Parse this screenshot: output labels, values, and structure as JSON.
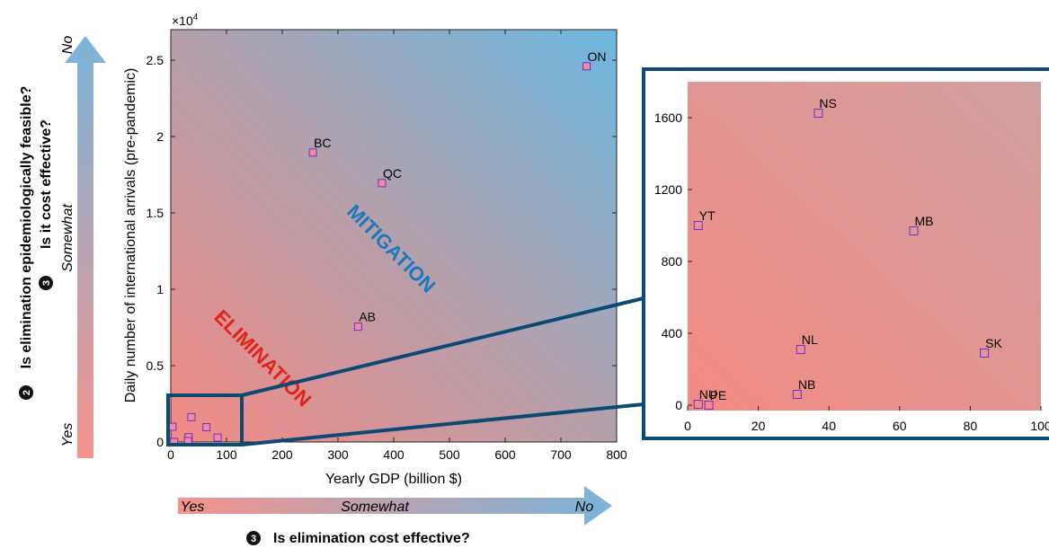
{
  "chart_data": [
    {
      "type": "scatter",
      "xlabel": "Yearly GDP (billion $)",
      "ylabel": "Daily number of international arrivals (pre-pandemic)",
      "exponent_label": "×10",
      "exponent_power": "4",
      "xlim": [
        0,
        800
      ],
      "ylim": [
        0,
        27000
      ],
      "x_ticks": [
        0,
        100,
        200,
        300,
        400,
        500,
        600,
        700,
        800
      ],
      "y_ticks": [
        0,
        5000,
        10000,
        15000,
        20000,
        25000
      ],
      "y_tick_labels": [
        "0",
        "0.5",
        "1",
        "1.5",
        "2",
        "2.5"
      ],
      "grid": false,
      "points": [
        {
          "label": "ON",
          "x": 746,
          "y": 24600
        },
        {
          "label": "BC",
          "x": 255,
          "y": 18950
        },
        {
          "label": "QC",
          "x": 379,
          "y": 16950
        },
        {
          "label": "AB",
          "x": 336,
          "y": 7550
        },
        {
          "label": "",
          "x": 37,
          "y": 1625
        },
        {
          "label": "",
          "x": 3,
          "y": 1000
        },
        {
          "label": "",
          "x": 64,
          "y": 970
        },
        {
          "label": "",
          "x": 32,
          "y": 310
        },
        {
          "label": "",
          "x": 84,
          "y": 290
        },
        {
          "label": "",
          "x": 31,
          "y": 60
        },
        {
          "label": "",
          "x": 3,
          "y": 5
        },
        {
          "label": "",
          "x": 6,
          "y": 0
        }
      ],
      "region_labels": [
        "MITIGATION",
        "ELIMINATION"
      ],
      "background_gradient": [
        "#f48a83",
        "#6cb8e0"
      ]
    },
    {
      "type": "scatter",
      "title": "",
      "xlim": [
        0,
        100
      ],
      "ylim": [
        -30,
        1800
      ],
      "x_ticks": [
        0,
        20,
        40,
        60,
        80,
        100
      ],
      "y_ticks": [
        0,
        400,
        800,
        1200,
        1600
      ],
      "grid": false,
      "points": [
        {
          "label": "NS",
          "x": 37,
          "y": 1625
        },
        {
          "label": "YT",
          "x": 3,
          "y": 1000
        },
        {
          "label": "MB",
          "x": 64,
          "y": 970
        },
        {
          "label": "NL",
          "x": 32,
          "y": 310
        },
        {
          "label": "SK",
          "x": 84,
          "y": 290
        },
        {
          "label": "NB",
          "x": 31,
          "y": 60
        },
        {
          "label": "NU",
          "x": 3,
          "y": 5
        },
        {
          "label": "PE",
          "x": 6,
          "y": 0
        }
      ]
    }
  ],
  "annotations": {
    "y_axis_question_1_num": "2",
    "y_axis_question_1": "Is elimination epidemiologically feasible?",
    "y_axis_question_2_num": "3",
    "y_axis_question_2": "Is it cost effective?",
    "y_arrow_top": "No",
    "y_arrow_mid": "Somewhat",
    "y_arrow_bottom": "Yes",
    "x_arrow_left": "Yes",
    "x_arrow_mid": "Somewhat",
    "x_arrow_right": "No",
    "x_axis_question_num": "3",
    "x_axis_question": "Is elimination cost effective?"
  },
  "colors": {
    "marker_edge": "#6a2fd6",
    "marker_fill": "#f48a9a",
    "zoom_box": "#0d4a73",
    "mitigation_text": "#1a78bf",
    "elimination_text": "#e2231a",
    "arrow_yes": "#f4938c",
    "arrow_no": "#7ab4d9"
  }
}
